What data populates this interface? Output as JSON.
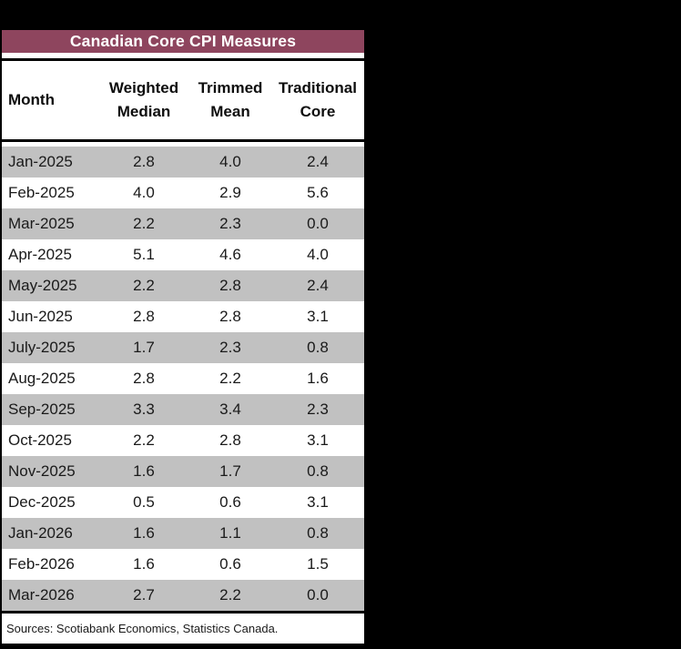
{
  "colors": {
    "canvas_bg": "#000000",
    "title_bg": "#8e455e",
    "title_text": "#ffffff",
    "alt_row_bg": "#c1c1c1",
    "rule": "#000000",
    "body_text": "#1a1a1a"
  },
  "table": {
    "title": "Canadian Core CPI Measures",
    "header": {
      "col0": "Month",
      "col1": [
        "Weighted",
        "Median"
      ],
      "col2": [
        "Trimmed",
        "Mean"
      ],
      "col3": [
        "Traditional",
        "Core"
      ]
    },
    "rows": [
      {
        "month": "Jan-2025",
        "weighted_median": "2.8",
        "trimmed_mean": "4.0",
        "traditional_core": "2.4"
      },
      {
        "month": "Feb-2025",
        "weighted_median": "4.0",
        "trimmed_mean": "2.9",
        "traditional_core": "5.6"
      },
      {
        "month": "Mar-2025",
        "weighted_median": "2.2",
        "trimmed_mean": "2.3",
        "traditional_core": "0.0"
      },
      {
        "month": "Apr-2025",
        "weighted_median": "5.1",
        "trimmed_mean": "4.6",
        "traditional_core": "4.0"
      },
      {
        "month": "May-2025",
        "weighted_median": "2.2",
        "trimmed_mean": "2.8",
        "traditional_core": "2.4"
      },
      {
        "month": "Jun-2025",
        "weighted_median": "2.8",
        "trimmed_mean": "2.8",
        "traditional_core": "3.1"
      },
      {
        "month": "July-2025",
        "weighted_median": "1.7",
        "trimmed_mean": "2.3",
        "traditional_core": "0.8"
      },
      {
        "month": "Aug-2025",
        "weighted_median": "2.8",
        "trimmed_mean": "2.2",
        "traditional_core": "1.6"
      },
      {
        "month": "Sep-2025",
        "weighted_median": "3.3",
        "trimmed_mean": "3.4",
        "traditional_core": "2.3"
      },
      {
        "month": "Oct-2025",
        "weighted_median": "2.2",
        "trimmed_mean": "2.8",
        "traditional_core": "3.1"
      },
      {
        "month": "Nov-2025",
        "weighted_median": "1.6",
        "trimmed_mean": "1.7",
        "traditional_core": "0.8"
      },
      {
        "month": "Dec-2025",
        "weighted_median": "0.5",
        "trimmed_mean": "0.6",
        "traditional_core": "3.1"
      },
      {
        "month": "Jan-2026",
        "weighted_median": "1.6",
        "trimmed_mean": "1.1",
        "traditional_core": "0.8"
      },
      {
        "month": "Feb-2026",
        "weighted_median": "1.6",
        "trimmed_mean": "0.6",
        "traditional_core": "1.5"
      },
      {
        "month": "Mar-2026",
        "weighted_median": "2.7",
        "trimmed_mean": "2.2",
        "traditional_core": "0.0"
      }
    ],
    "source_note": "Sources: Scotiabank Economics, Statistics Canada."
  },
  "chart_data": {
    "type": "table",
    "title": "Canadian Core CPI Measures",
    "columns": [
      "Month",
      "Weighted Median",
      "Trimmed Mean",
      "Traditional Core"
    ],
    "rows": [
      [
        "Jan-2025",
        2.8,
        4.0,
        2.4
      ],
      [
        "Feb-2025",
        4.0,
        2.9,
        5.6
      ],
      [
        "Mar-2025",
        2.2,
        2.3,
        0.0
      ],
      [
        "Apr-2025",
        5.1,
        4.6,
        4.0
      ],
      [
        "May-2025",
        2.2,
        2.8,
        2.4
      ],
      [
        "Jun-2025",
        2.8,
        2.8,
        3.1
      ],
      [
        "July-2025",
        1.7,
        2.3,
        0.8
      ],
      [
        "Aug-2025",
        2.8,
        2.2,
        1.6
      ],
      [
        "Sep-2025",
        3.3,
        3.4,
        2.3
      ],
      [
        "Oct-2025",
        2.2,
        2.8,
        3.1
      ],
      [
        "Nov-2025",
        1.6,
        1.7,
        0.8
      ],
      [
        "Dec-2025",
        0.5,
        0.6,
        3.1
      ],
      [
        "Jan-2026",
        1.6,
        1.1,
        0.8
      ],
      [
        "Feb-2026",
        1.6,
        0.6,
        1.5
      ],
      [
        "Mar-2026",
        2.7,
        2.2,
        0.0
      ]
    ],
    "annotations": [
      "Sources: Scotiabank Economics, Statistics Canada."
    ],
    "layout": {
      "striped_rows": true,
      "stripe_color": "#c1c1c1",
      "header_bar_color": "#8e455e"
    }
  }
}
